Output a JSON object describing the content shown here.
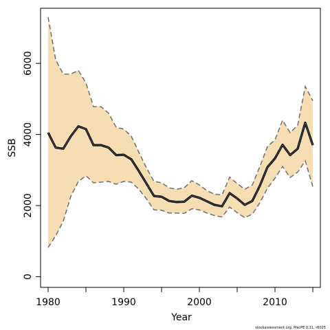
{
  "chart_data": {
    "type": "line",
    "title": "",
    "xlabel": "Year",
    "ylabel": "SSB",
    "xlim": [
      1979,
      2016
    ],
    "ylim": [
      -300,
      7550
    ],
    "x_ticks": [
      1980,
      1990,
      2000,
      2010
    ],
    "y_ticks": [
      0,
      2000,
      4000,
      6000
    ],
    "grid": false,
    "legend": "none",
    "colors": {
      "band": "#f5deb3",
      "estimate": "#000000",
      "bounds": "#6e6e6e"
    },
    "x": [
      1980,
      1981,
      1982,
      1983,
      1984,
      1985,
      1986,
      1987,
      1988,
      1989,
      1990,
      1991,
      1992,
      1993,
      1994,
      1995,
      1996,
      1997,
      1998,
      1999,
      2000,
      2001,
      2002,
      2003,
      2004,
      2005,
      2006,
      2007,
      2008,
      2009,
      2010,
      2011,
      2012,
      2013,
      2014,
      2015
    ],
    "series": [
      {
        "role": "estimate",
        "values": [
          4050,
          3630,
          3600,
          3950,
          4230,
          4150,
          3700,
          3700,
          3630,
          3420,
          3430,
          3300,
          2970,
          2620,
          2270,
          2250,
          2130,
          2100,
          2110,
          2280,
          2220,
          2120,
          2020,
          1980,
          2350,
          2200,
          2020,
          2130,
          2560,
          3080,
          3330,
          3710,
          3420,
          3600,
          4330,
          3700
        ]
      },
      {
        "role": "upper",
        "values": [
          7300,
          6100,
          5700,
          5700,
          5800,
          5450,
          4780,
          4780,
          4600,
          4200,
          4150,
          3950,
          3500,
          3060,
          2680,
          2640,
          2500,
          2460,
          2500,
          2700,
          2580,
          2420,
          2320,
          2300,
          2800,
          2620,
          2460,
          2580,
          3100,
          3660,
          3850,
          4400,
          4050,
          4260,
          5350,
          4950
        ]
      },
      {
        "role": "lower",
        "values": [
          820,
          1150,
          1560,
          2260,
          2680,
          2840,
          2640,
          2660,
          2680,
          2600,
          2680,
          2660,
          2460,
          2190,
          1880,
          1870,
          1790,
          1790,
          1780,
          1910,
          1880,
          1790,
          1720,
          1680,
          1960,
          1800,
          1660,
          1760,
          2080,
          2490,
          2770,
          3100,
          2790,
          2940,
          3260,
          2530
        ]
      }
    ]
  },
  "credit": "stockassessment.org, MacPE 0.31, r6025"
}
